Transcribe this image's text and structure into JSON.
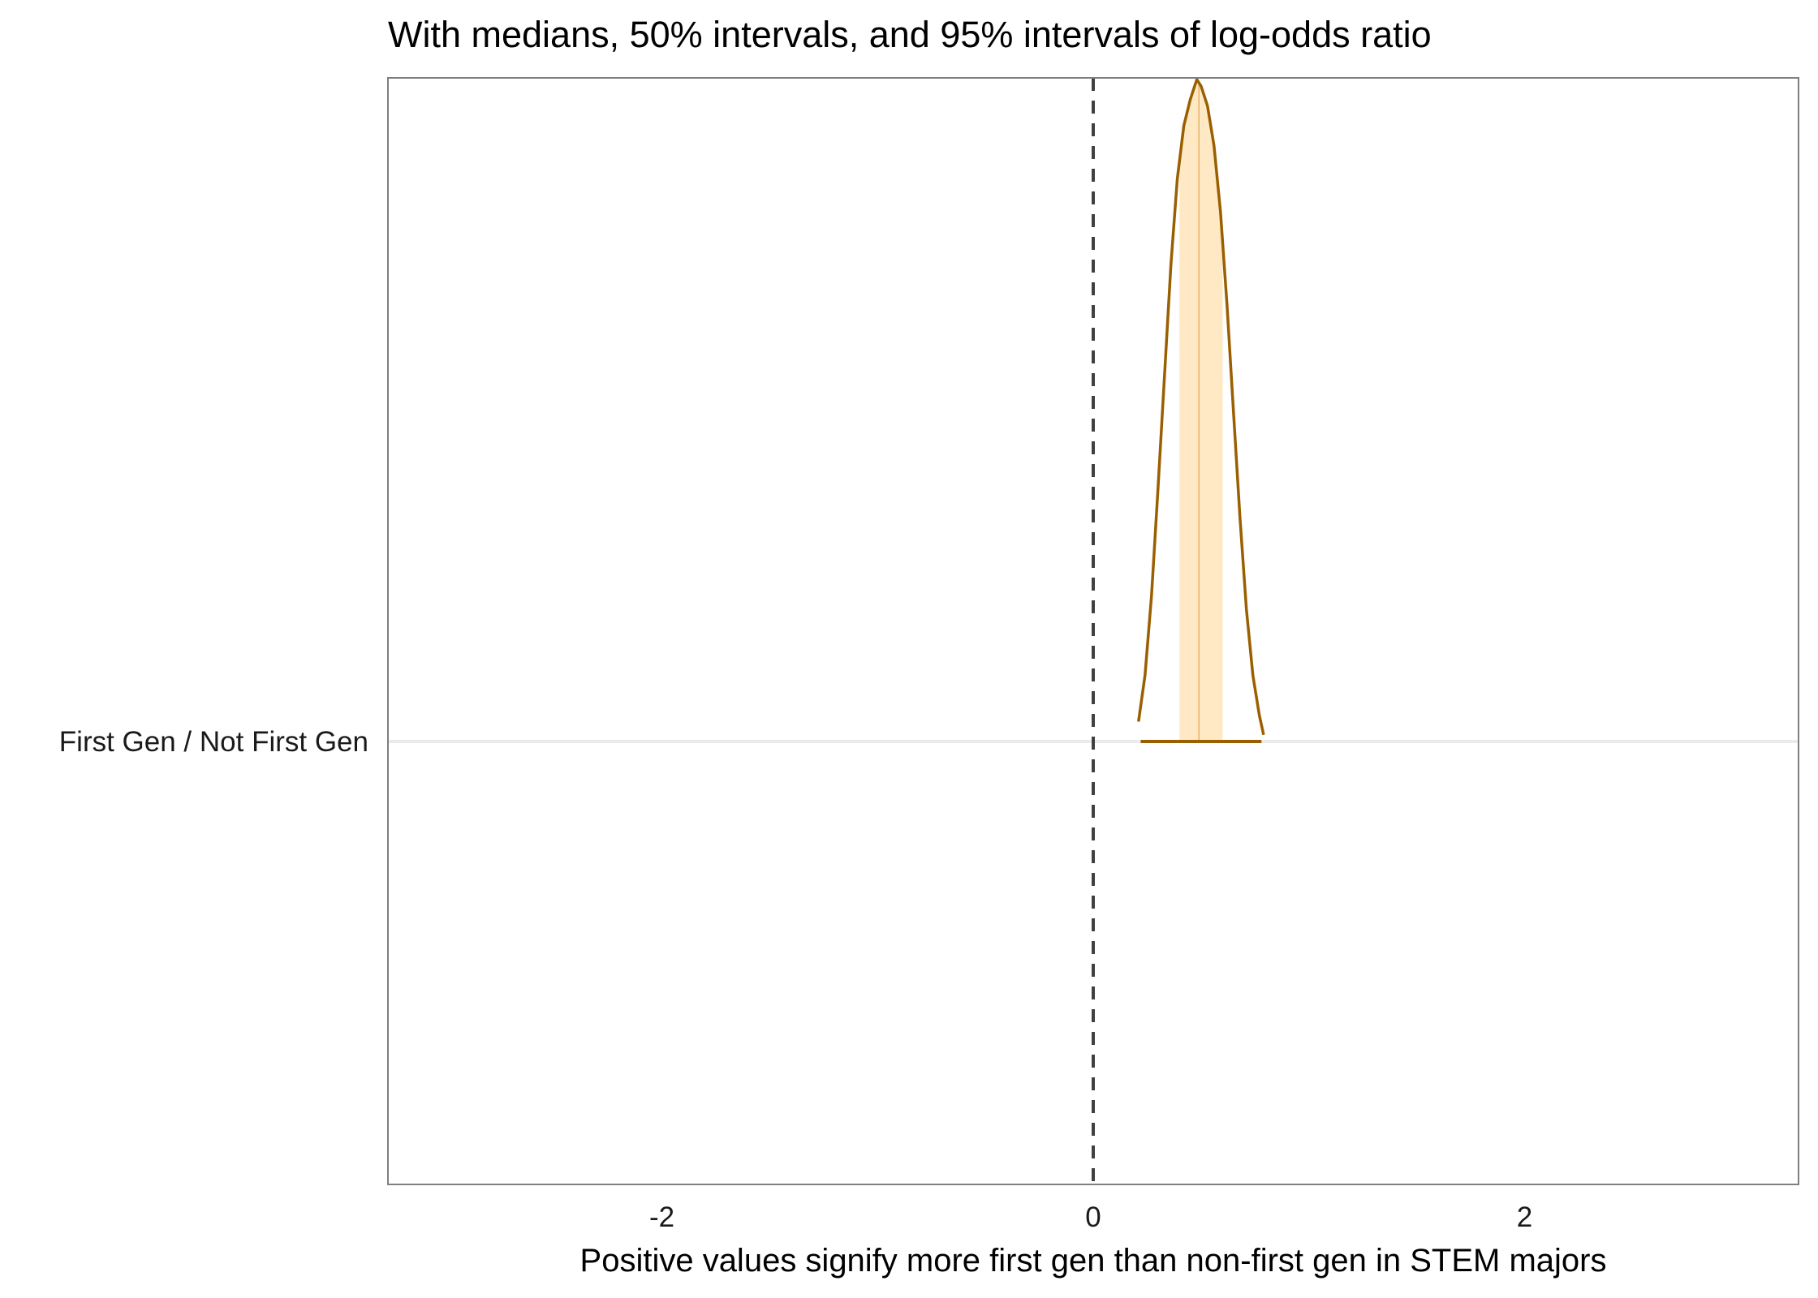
{
  "chart_data": {
    "type": "density_interval",
    "title": "With medians, 50% intervals, and 95% intervals of log-odds ratio",
    "xlabel": "Positive values signify more first gen than non-first gen in STEM majors",
    "ylabel": "",
    "xlim": [
      -3.27,
      3.27
    ],
    "x_ticks": [
      -2,
      0,
      2
    ],
    "x_tick_labels": [
      "-2",
      "0",
      "2"
    ],
    "categories": [
      "First Gen / Not First Gen"
    ],
    "reference_line": {
      "x": 0,
      "style": "dashed"
    },
    "grid": {
      "vertical": false,
      "horizontal": true
    },
    "series": [
      {
        "category": "First Gen / Not First Gen",
        "median": 0.49,
        "interval_50": [
          0.4,
          0.6
        ],
        "interval_95": [
          0.22,
          0.78
        ],
        "density": {
          "x": [
            0.21,
            0.24,
            0.27,
            0.3,
            0.33,
            0.36,
            0.39,
            0.42,
            0.45,
            0.48,
            0.5,
            0.53,
            0.56,
            0.59,
            0.62,
            0.65,
            0.68,
            0.71,
            0.74,
            0.77,
            0.79
          ],
          "y": [
            0.03,
            0.1,
            0.22,
            0.38,
            0.55,
            0.72,
            0.85,
            0.93,
            0.97,
            1.0,
            0.99,
            0.96,
            0.9,
            0.8,
            0.66,
            0.5,
            0.34,
            0.2,
            0.1,
            0.04,
            0.01
          ]
        }
      }
    ],
    "colors": {
      "density_line": "#9a5f00",
      "interval_50_fill": "#ffe9c4",
      "interval_line": "#9a5f00",
      "median_line": "#e8b36a",
      "reference_line": "#404040",
      "gridline": "#ebebeb",
      "panel_border": "#7f7f7f"
    }
  }
}
